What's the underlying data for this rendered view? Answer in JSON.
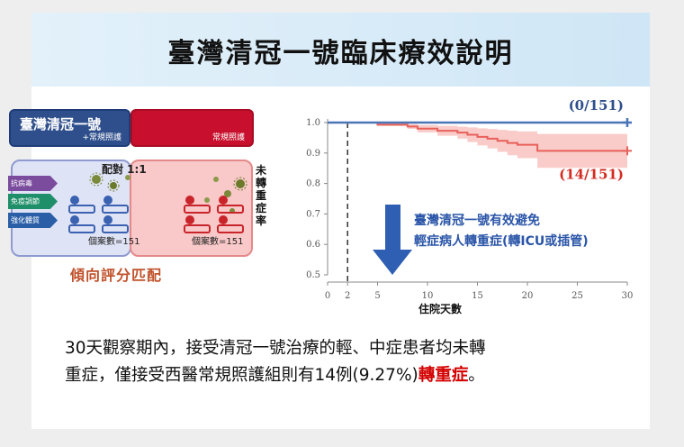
{
  "title": "臺灣清冠一號臨床療效說明",
  "schematic": {
    "arm_a_name": "臺灣清冠一號",
    "arm_a_sub": "+常規照護",
    "arm_b_sub": "常規照護",
    "pairing": "配對 1:1",
    "tags": [
      "抗病毒",
      "免疫調節",
      "強化體質"
    ],
    "count_a": "個案數=151",
    "count_b": "個案數=151",
    "matching_label": "傾向評分匹配"
  },
  "chart_data": {
    "type": "line",
    "xlabel": "住院天數",
    "ylabel": "未轉重症率",
    "xlim": [
      0,
      30
    ],
    "ylim": [
      0.5,
      1.0
    ],
    "xticks": [
      0,
      2,
      5,
      10,
      15,
      20,
      25,
      30
    ],
    "yticks": [
      "0.5",
      "0.6",
      "0.7",
      "0.8",
      "0.9",
      "1.0"
    ],
    "series": [
      {
        "name": "臺灣清冠一號+常規照護",
        "color": "#4a76b8",
        "x": [
          0,
          30
        ],
        "y": [
          1.0,
          1.0
        ],
        "end_label": "(0/151)"
      },
      {
        "name": "常規照護",
        "color": "#e8615a",
        "band_color": "#f7b7b4",
        "x": [
          0,
          4,
          5,
          7,
          8,
          9,
          10,
          11,
          12,
          13,
          14,
          15,
          16,
          17,
          18,
          19,
          20,
          21,
          22,
          30
        ],
        "y": [
          1.0,
          1.0,
          0.993,
          0.993,
          0.987,
          0.98,
          0.98,
          0.973,
          0.973,
          0.967,
          0.96,
          0.953,
          0.947,
          0.94,
          0.933,
          0.927,
          0.927,
          0.907,
          0.907,
          0.907
        ],
        "end_label": "(14/151)"
      }
    ],
    "marker_x": 2,
    "annotation": [
      "臺灣清冠一號有效避免",
      "輕症病人轉重症(轉ICU或插管)"
    ]
  },
  "bottom": {
    "line1": "30天觀察期內，接受清冠一號治療的輕、中症患者均未轉",
    "line2a": "重症，僅接受西醫常規照護組則有14例(9.27%)",
    "line2b": "轉重症",
    "line2c": "。"
  }
}
